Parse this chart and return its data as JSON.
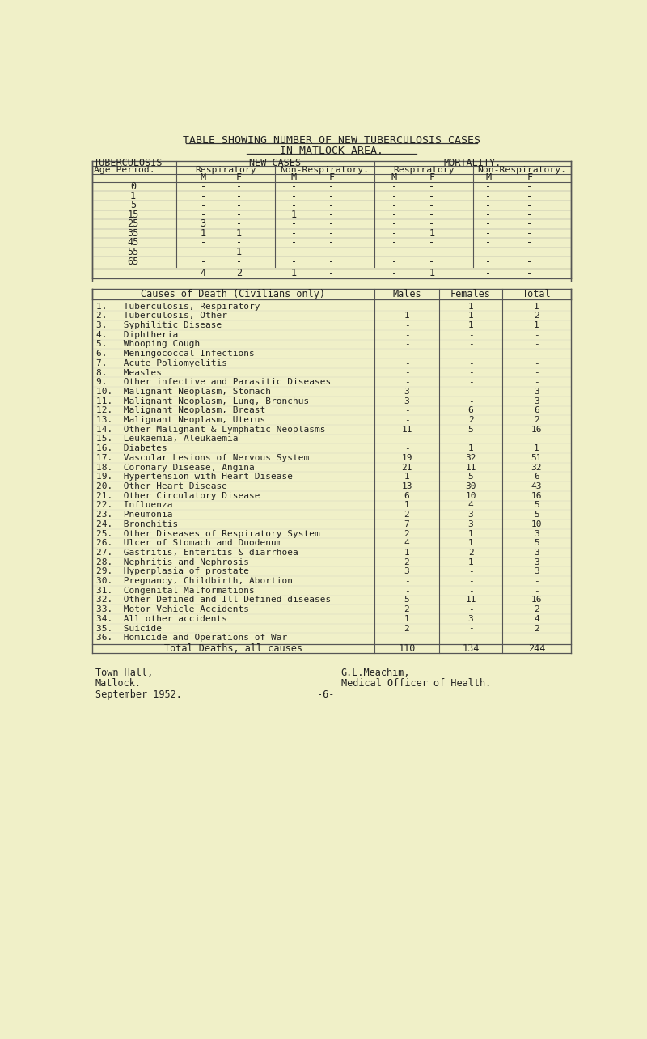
{
  "bg_color": "#f0f0c8",
  "title_line1": "TABLE SHOWING NUMBER OF NEW TUBERCULOSIS CASES",
  "title_line2": "IN MATLOCK AREA.",
  "tb_age_rows": [
    [
      "0",
      "-",
      "-",
      "-",
      "-",
      "-",
      "-",
      "-",
      "-"
    ],
    [
      "1",
      "-",
      "-",
      "-",
      "-",
      "-",
      "-",
      "-",
      "-"
    ],
    [
      "5",
      "-",
      "-",
      "-",
      "-",
      "-",
      "-",
      "-",
      "-"
    ],
    [
      "15",
      "-",
      "-",
      "1",
      "-",
      "-",
      "-",
      "-",
      "-"
    ],
    [
      "25",
      "3",
      "-",
      "-",
      "-",
      "-",
      "-",
      "-",
      "-"
    ],
    [
      "35",
      "1",
      "1",
      "-",
      "-",
      "-",
      "1",
      "-",
      "-"
    ],
    [
      "45",
      "-",
      "-",
      "-",
      "-",
      "-",
      "-",
      "-",
      "-"
    ],
    [
      "55",
      "-",
      "1",
      "-",
      "-",
      "-",
      "-",
      "-",
      "-"
    ],
    [
      "65",
      "-",
      "-",
      "-",
      "-",
      "-",
      "-",
      "-",
      "-"
    ]
  ],
  "tb_total_row": [
    "",
    "4",
    "2",
    "1",
    "-",
    "-",
    "1",
    "-",
    "-"
  ],
  "death_rows": [
    [
      "1.   Tuberculosis, Respiratory",
      "-",
      "1",
      "1"
    ],
    [
      "2.   Tuberculosis, Other",
      "1",
      "1",
      "2"
    ],
    [
      "3.   Syphilitic Disease",
      "-",
      "1",
      "1"
    ],
    [
      "4.   Diphtheria",
      "-",
      "-",
      "-"
    ],
    [
      "5.   Whooping Cough",
      "-",
      "-",
      "-"
    ],
    [
      "6.   Meningococcal Infections",
      "-",
      "-",
      "-"
    ],
    [
      "7.   Acute Poliomyelitis",
      "-",
      "-",
      "-"
    ],
    [
      "8.   Measles",
      "-",
      "-",
      "-"
    ],
    [
      "9.   Other infective and Parasitic Diseases",
      "-",
      "-",
      "-"
    ],
    [
      "10.  Malignant Neoplasm, Stomach",
      "3",
      "-",
      "3"
    ],
    [
      "11.  Malignant Neoplasm, Lung, Bronchus",
      "3",
      "-",
      "3"
    ],
    [
      "12.  Malignant Neoplasm, Breast",
      "-",
      "6",
      "6"
    ],
    [
      "13.  Malignant Neoplasm, Uterus",
      "-",
      "2",
      "2"
    ],
    [
      "14.  Other Malignant & Lymphatic Neoplasms",
      "11",
      "5",
      "16"
    ],
    [
      "15.  Leukaemia, Aleukaemia",
      "-",
      "-",
      "-"
    ],
    [
      "16.  Diabetes",
      "-",
      "1",
      "1"
    ],
    [
      "17.  Vascular Lesions of Nervous System",
      "19",
      "32",
      "51"
    ],
    [
      "18.  Coronary Disease, Angina",
      "21",
      "11",
      "32"
    ],
    [
      "19.  Hypertension with Heart Disease",
      "1",
      "5",
      "6"
    ],
    [
      "20.  Other Heart Disease",
      "13",
      "30",
      "43"
    ],
    [
      "21.  Other Circulatory Disease",
      "6",
      "10",
      "16"
    ],
    [
      "22.  Influenza",
      "1",
      "4",
      "5"
    ],
    [
      "23.  Pneumonia",
      "2",
      "3",
      "5"
    ],
    [
      "24.  Bronchitis",
      "7",
      "3",
      "10"
    ],
    [
      "25.  Other Diseases of Respiratory System",
      "2",
      "1",
      "3"
    ],
    [
      "26.  Ulcer of Stomach and Duodenum",
      "4",
      "1",
      "5"
    ],
    [
      "27.  Gastritis, Enteritis & diarrhoea",
      "1",
      "2",
      "3"
    ],
    [
      "28.  Nephritis and Nephrosis",
      "2",
      "1",
      "3"
    ],
    [
      "29.  Hyperplasia of prostate",
      "3",
      "-",
      "3"
    ],
    [
      "30.  Pregnancy, Childbirth, Abortion",
      "-",
      "-",
      "-"
    ],
    [
      "31.  Congenital Malformations",
      "-",
      "-",
      "-"
    ],
    [
      "32.  Other Defined and Ill-Defined diseases",
      "5",
      "11",
      "16"
    ],
    [
      "33.  Motor Vehicle Accidents",
      "2",
      "-",
      "2"
    ],
    [
      "34.  All other accidents",
      "1",
      "3",
      "4"
    ],
    [
      "35.  Suicide",
      "2",
      "-",
      "2"
    ],
    [
      "36.  Homicide and Operations of War",
      "-",
      "-",
      "-"
    ]
  ],
  "death_total_row": [
    "Total Deaths, all causes",
    "110",
    "134",
    "244"
  ],
  "footer_left1": "Town Hall,",
  "footer_left2": "Matlock.",
  "footer_right1": "G.L.Meachim,",
  "footer_right2": "Medical Officer of Health.",
  "footer_date": "September 1952.",
  "footer_page": "-6-"
}
